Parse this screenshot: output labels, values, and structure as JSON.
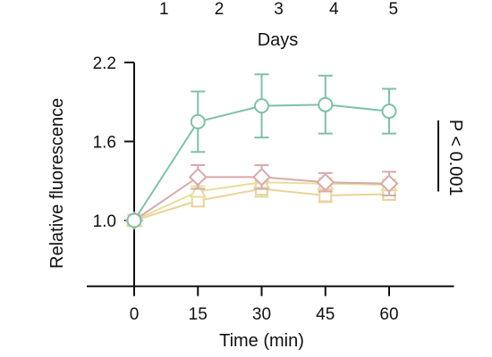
{
  "chart_data": {
    "type": "line",
    "x": [
      0,
      15,
      30,
      45,
      60
    ],
    "xlabel": "Time (min)",
    "xticks": [
      "0",
      "15",
      "30",
      "45",
      "60"
    ],
    "xlim": [
      0,
      70
    ],
    "top_axis": {
      "label": "Days",
      "ticks": [
        "1",
        "2",
        "3",
        "4",
        "5"
      ],
      "tick_x": [
        7,
        20,
        34,
        47,
        61
      ]
    },
    "ylabel": "Relative fluorescence",
    "yticks": [
      "1.0",
      "1.6",
      "2.2"
    ],
    "ytick_values": [
      1.0,
      1.6,
      2.2
    ],
    "ylim": [
      0.5,
      2.2
    ],
    "annotation": "P < 0.001",
    "series": [
      {
        "marker": "circle",
        "color": "#7cc2a6",
        "values": [
          1.0,
          1.75,
          1.87,
          1.88,
          1.83
        ],
        "err": [
          0,
          0.23,
          0.24,
          0.22,
          0.17
        ]
      },
      {
        "marker": "diamond",
        "color": "#d7a9ad",
        "values": [
          1.0,
          1.33,
          1.33,
          1.29,
          1.28
        ],
        "err": [
          0,
          0.09,
          0.09,
          0.07,
          0.09
        ]
      },
      {
        "marker": "triangle",
        "color": "#e6df9a",
        "values": [
          1.0,
          1.22,
          1.29,
          1.28,
          1.27
        ],
        "err": [
          0,
          0.04,
          0.05,
          0.04,
          0.04
        ]
      },
      {
        "marker": "square",
        "color": "#e8d49a",
        "values": [
          1.0,
          1.15,
          1.24,
          1.19,
          1.2
        ],
        "err": [
          0,
          0.04,
          0.06,
          0.05,
          0.04
        ]
      }
    ]
  }
}
